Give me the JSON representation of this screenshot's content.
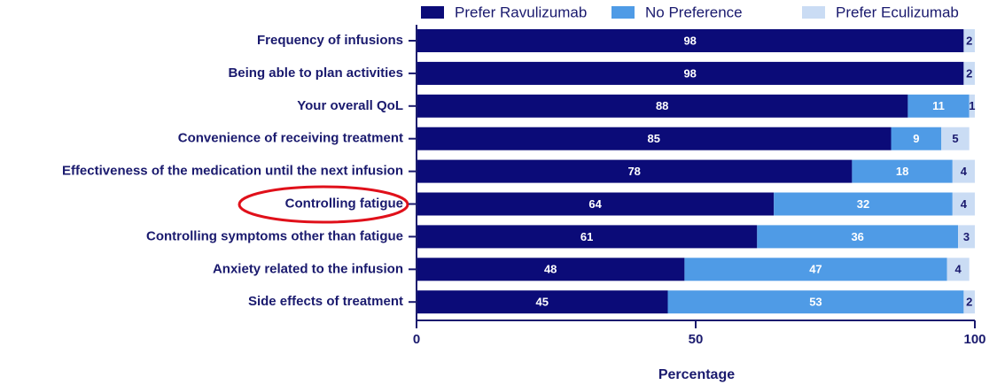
{
  "chart_data": {
    "type": "stacked_barh",
    "xlabel": "Percentage",
    "categories": [
      "Frequency of infusions",
      "Being able to plan activities",
      "Your overall QoL",
      "Convenience of receiving treatment",
      "Effectiveness of the medication until the next infusion",
      "Controlling fatigue",
      "Controlling symptoms other than fatigue",
      "Anxiety related to the infusion",
      "Side effects of treatment"
    ],
    "series": [
      {
        "name": "Prefer Ravulizumab",
        "color": "#0b0b78",
        "label_color": "#ffffff",
        "values": [
          98,
          98,
          88,
          85,
          78,
          64,
          61,
          48,
          45
        ]
      },
      {
        "name": "No Preference",
        "color": "#4f9be6",
        "label_color": "#ffffff",
        "values": [
          null,
          null,
          11,
          9,
          18,
          32,
          36,
          47,
          53
        ]
      },
      {
        "name": "Prefer Eculizumab",
        "color": "#cadcf4",
        "label_color": "#1a1a6e",
        "values": [
          2,
          2,
          1,
          5,
          4,
          4,
          3,
          4,
          2
        ]
      }
    ],
    "xlim": [
      0,
      100
    ],
    "xticks": [
      0,
      50,
      100
    ]
  }
}
